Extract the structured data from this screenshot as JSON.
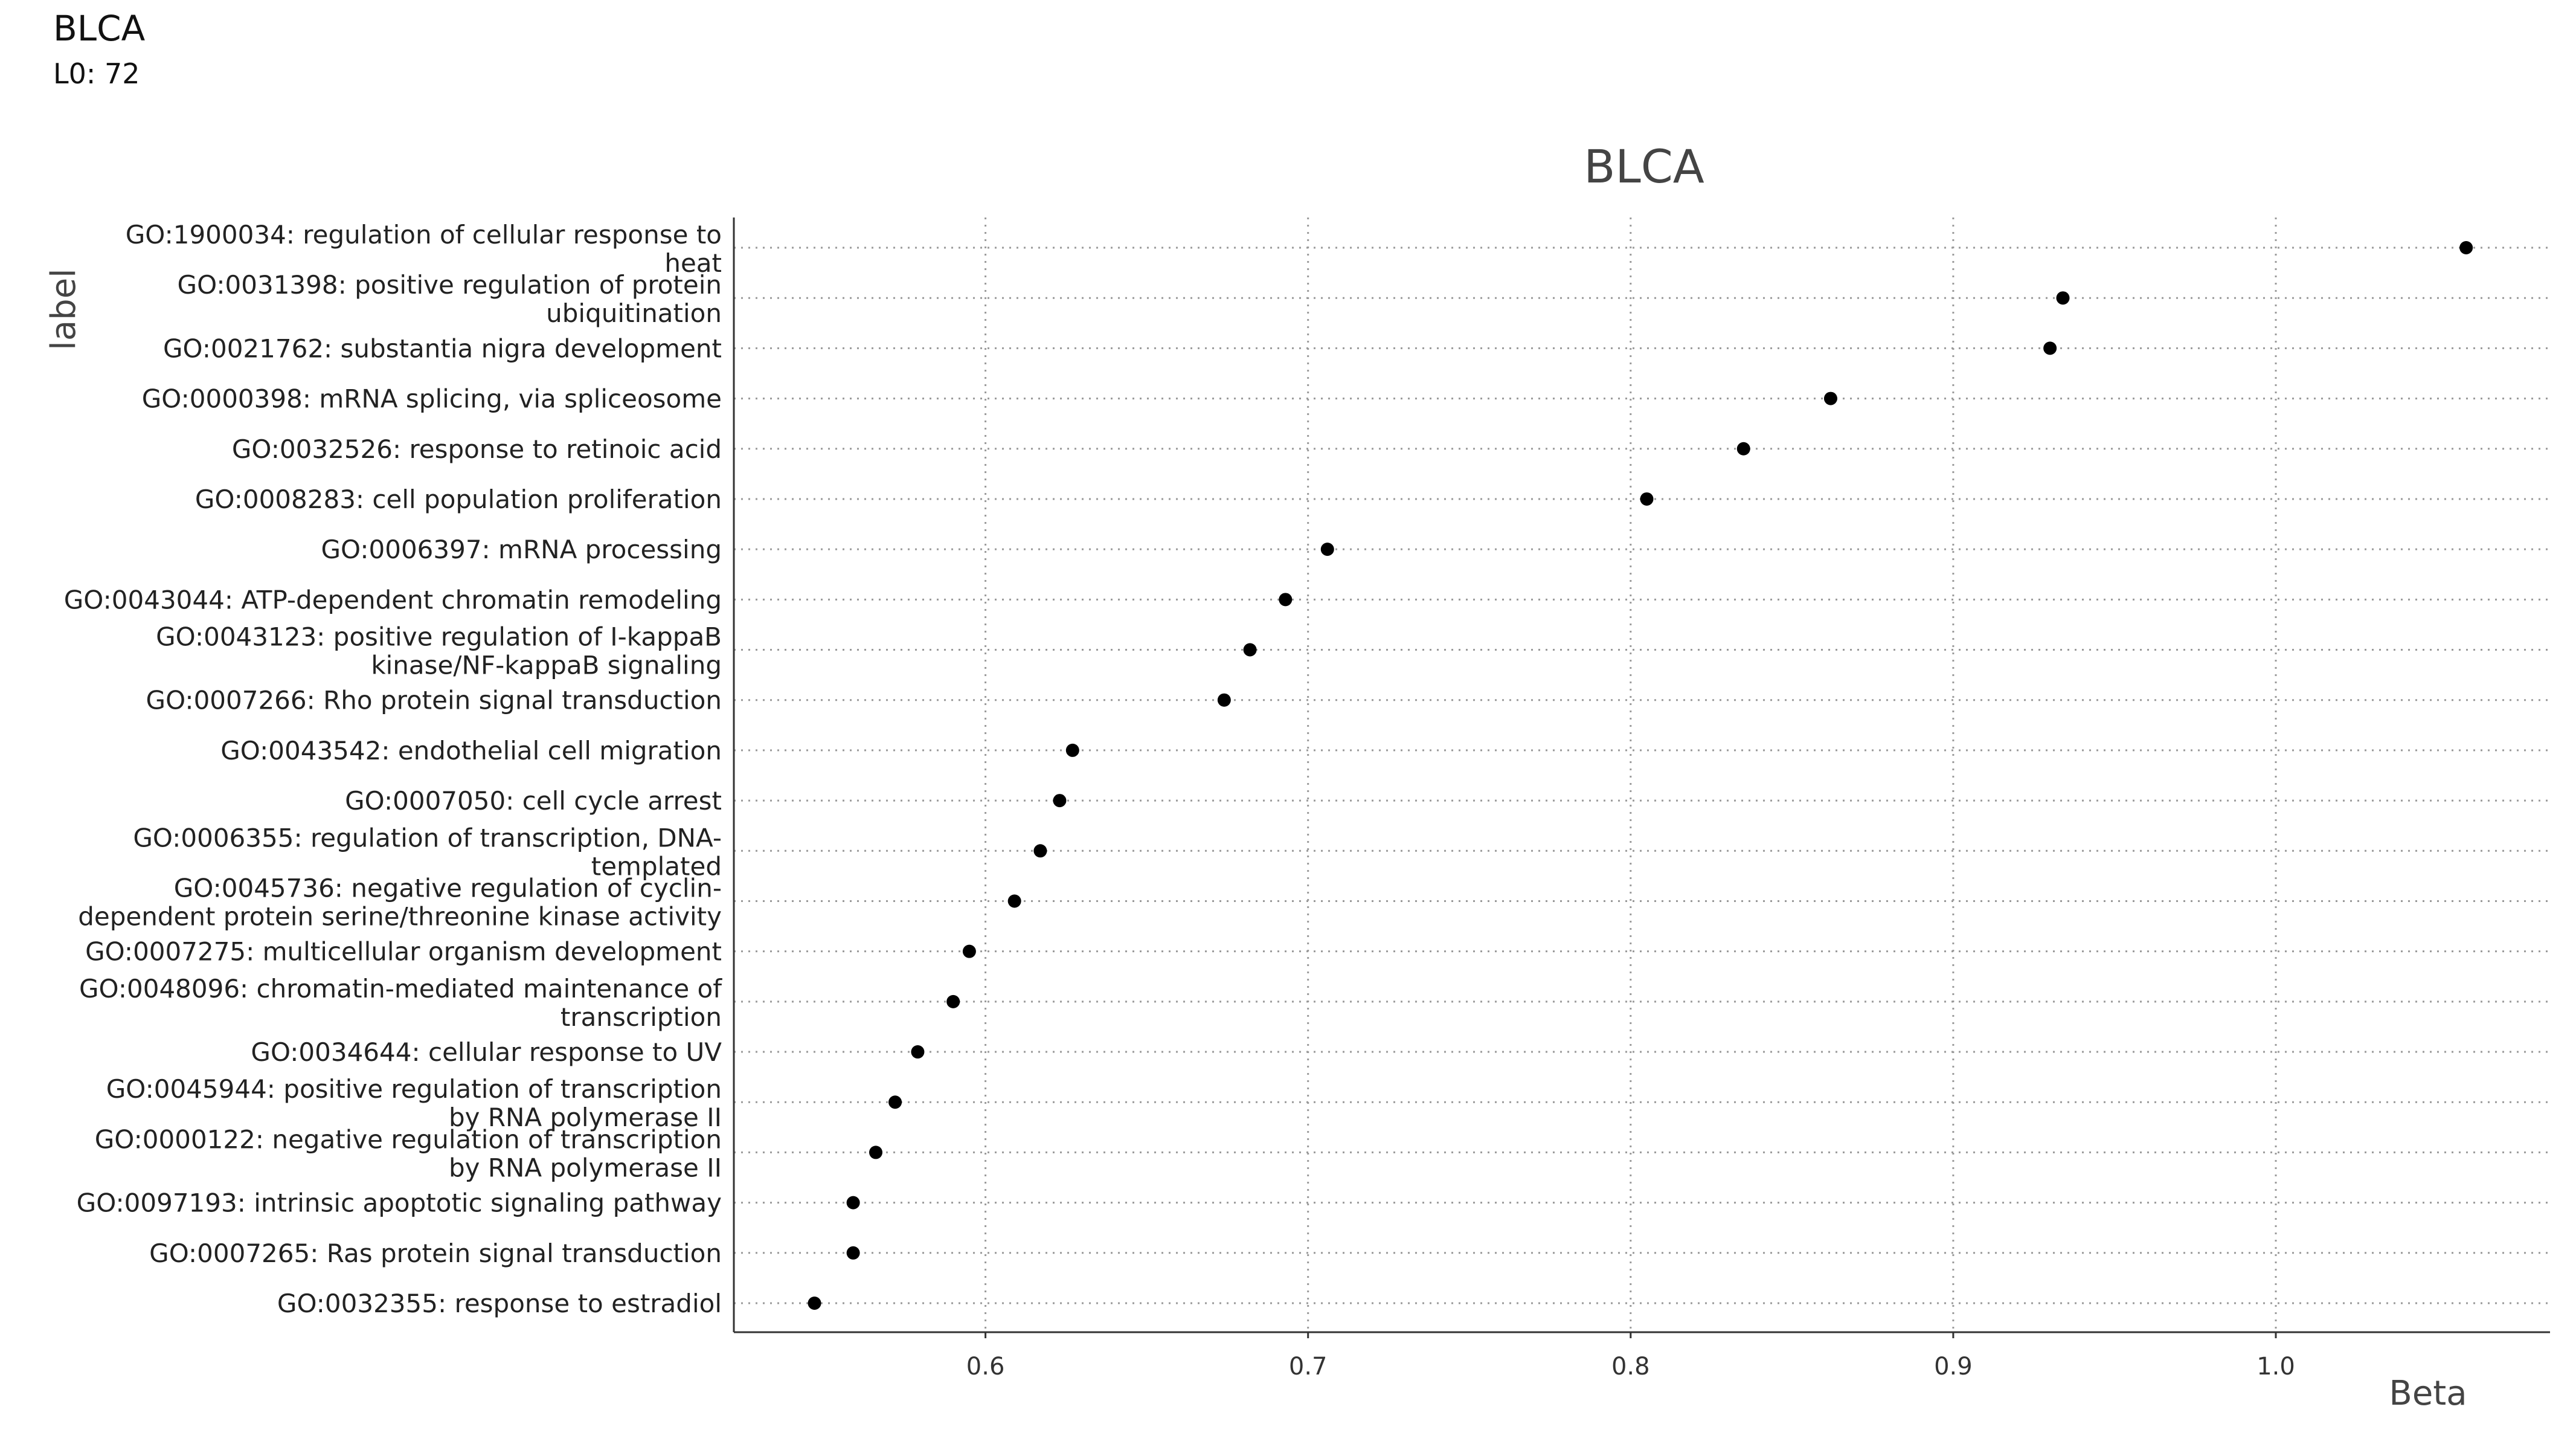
{
  "header": {
    "title": "BLCA",
    "subtitle": "L0: 72"
  },
  "chart_data": {
    "type": "scatter",
    "title": "BLCA",
    "xlabel": "Beta",
    "ylabel": "label",
    "xlim": [
      0.522,
      1.085
    ],
    "x_ticks": [
      0.6,
      0.7,
      0.8,
      0.9,
      1.0
    ],
    "x_tick_labels": [
      "0.6",
      "0.7",
      "0.8",
      "0.9",
      "1.0"
    ],
    "grid": true,
    "grid_style": "dotted",
    "point_color": "#000000",
    "points": [
      {
        "label": "GO:1900034: regulation of cellular response to heat",
        "label_lines": [
          "GO:1900034: regulation of cellular response to",
          "heat"
        ],
        "x": 1.059
      },
      {
        "label": "GO:0031398: positive regulation of protein ubiquitination",
        "label_lines": [
          "GO:0031398: positive regulation of protein",
          "ubiquitination"
        ],
        "x": 0.934
      },
      {
        "label": "GO:0021762: substantia nigra development",
        "label_lines": [
          "GO:0021762: substantia nigra development"
        ],
        "x": 0.93
      },
      {
        "label": "GO:0000398: mRNA splicing, via spliceosome",
        "label_lines": [
          "GO:0000398: mRNA splicing, via spliceosome"
        ],
        "x": 0.862
      },
      {
        "label": "GO:0032526: response to retinoic acid",
        "label_lines": [
          "GO:0032526: response to retinoic acid"
        ],
        "x": 0.835
      },
      {
        "label": "GO:0008283: cell population proliferation",
        "label_lines": [
          "GO:0008283: cell population proliferation"
        ],
        "x": 0.805
      },
      {
        "label": "GO:0006397: mRNA processing",
        "label_lines": [
          "GO:0006397: mRNA processing"
        ],
        "x": 0.706
      },
      {
        "label": "GO:0043044: ATP-dependent chromatin remodeling",
        "label_lines": [
          "GO:0043044: ATP-dependent chromatin remodeling"
        ],
        "x": 0.693
      },
      {
        "label": "GO:0043123: positive regulation of I-kappaB kinase/NF-kappaB signaling",
        "label_lines": [
          "GO:0043123: positive regulation of I-kappaB",
          "kinase/NF-kappaB signaling"
        ],
        "x": 0.682
      },
      {
        "label": "GO:0007266: Rho protein signal transduction",
        "label_lines": [
          "GO:0007266: Rho protein signal transduction"
        ],
        "x": 0.674
      },
      {
        "label": "GO:0043542: endothelial cell migration",
        "label_lines": [
          "GO:0043542: endothelial cell migration"
        ],
        "x": 0.627
      },
      {
        "label": "GO:0007050: cell cycle arrest",
        "label_lines": [
          "GO:0007050: cell cycle arrest"
        ],
        "x": 0.623
      },
      {
        "label": "GO:0006355: regulation of transcription, DNA-templated",
        "label_lines": [
          "GO:0006355: regulation of transcription, DNA-",
          "templated"
        ],
        "x": 0.617
      },
      {
        "label": "GO:0045736: negative regulation of cyclin-dependent protein serine/threonine kinase activity",
        "label_lines": [
          "GO:0045736: negative regulation of cyclin-",
          "dependent protein serine/threonine kinase activity"
        ],
        "x": 0.609
      },
      {
        "label": "GO:0007275: multicellular organism development",
        "label_lines": [
          "GO:0007275: multicellular organism development"
        ],
        "x": 0.595
      },
      {
        "label": "GO:0048096: chromatin-mediated maintenance of transcription",
        "label_lines": [
          "GO:0048096: chromatin-mediated maintenance of",
          "transcription"
        ],
        "x": 0.59
      },
      {
        "label": "GO:0034644: cellular response to UV",
        "label_lines": [
          "GO:0034644: cellular response to UV"
        ],
        "x": 0.579
      },
      {
        "label": "GO:0045944: positive regulation of transcription by RNA polymerase II",
        "label_lines": [
          "GO:0045944: positive regulation of transcription",
          "by RNA polymerase II"
        ],
        "x": 0.572
      },
      {
        "label": "GO:0000122: negative regulation of transcription by RNA polymerase II",
        "label_lines": [
          "GO:0000122: negative regulation of transcription",
          "by RNA polymerase II"
        ],
        "x": 0.566
      },
      {
        "label": "GO:0097193: intrinsic apoptotic signaling pathway",
        "label_lines": [
          "GO:0097193: intrinsic apoptotic signaling pathway"
        ],
        "x": 0.559
      },
      {
        "label": "GO:0007265: Ras protein signal transduction",
        "label_lines": [
          "GO:0007265: Ras protein signal transduction"
        ],
        "x": 0.559
      },
      {
        "label": "GO:0032355: response to estradiol",
        "label_lines": [
          "GO:0032355: response to estradiol"
        ],
        "x": 0.547
      }
    ]
  }
}
